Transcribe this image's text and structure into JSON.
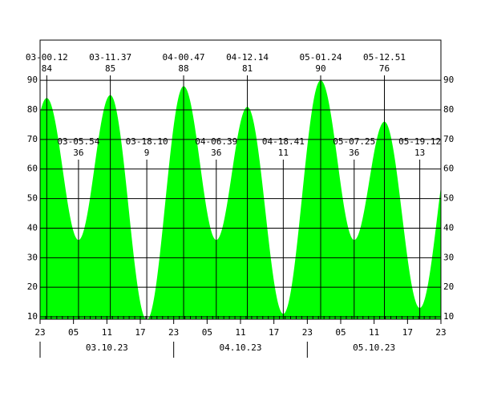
{
  "chart_data": {
    "type": "tide",
    "times": [
      "03-00.12",
      "03-05.54",
      "03-11.37",
      "03-18.10",
      "04-00.47",
      "04-06.39",
      "04-12.14",
      "04-18.41",
      "05-01.24",
      "05-07.25",
      "05-12.51",
      "05-19.12"
    ],
    "x": [
      0.2,
      5.9,
      11.617,
      18.167,
      24.783,
      30.65,
      36.233,
      42.683,
      49.4,
      55.417,
      60.85,
      67.2
    ],
    "values": [
      84,
      36,
      85,
      9,
      88,
      36,
      81,
      11,
      90,
      36,
      76,
      13
    ],
    "color": "#00ff00",
    "xlim": [
      -1,
      71
    ],
    "xticks": [
      {
        "value": -1,
        "label": "23"
      },
      {
        "value": 5,
        "label": "05"
      },
      {
        "value": 11,
        "label": "11"
      },
      {
        "value": 17,
        "label": "17"
      },
      {
        "value": 23,
        "label": "23"
      },
      {
        "value": 29,
        "label": "05"
      },
      {
        "value": 35,
        "label": "11"
      },
      {
        "value": 41,
        "label": "17"
      },
      {
        "value": 47,
        "label": "23"
      },
      {
        "value": 53,
        "label": "05"
      },
      {
        "value": 59,
        "label": "11"
      },
      {
        "value": 65,
        "label": "17"
      },
      {
        "value": 71,
        "label": "23"
      }
    ],
    "days": [
      "03.10.23",
      "04.10.23",
      "05.10.23"
    ],
    "ylim": [
      9.2,
      103.6
    ],
    "yticks": [
      10,
      20,
      30,
      40,
      50,
      60,
      70,
      80,
      90
    ],
    "grid": true
  }
}
